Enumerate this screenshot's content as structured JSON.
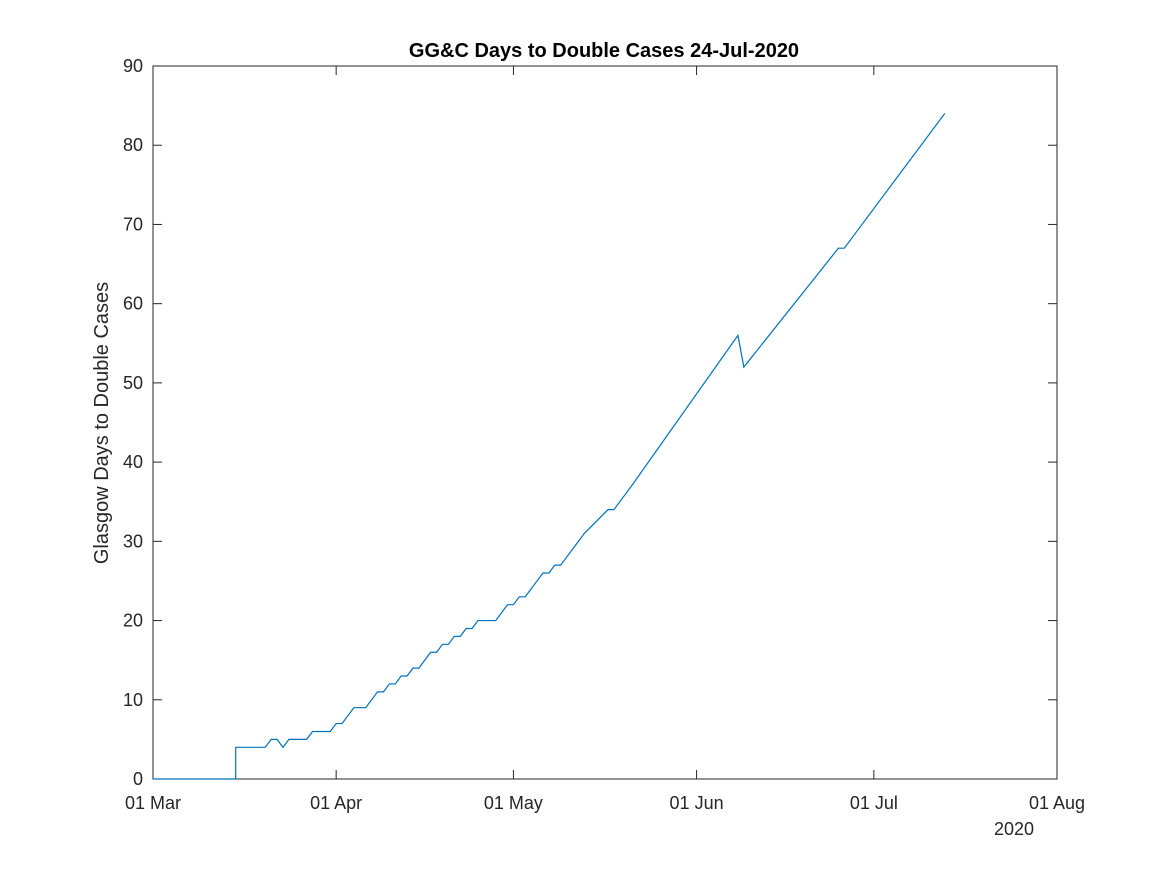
{
  "chart_data": {
    "type": "line",
    "title": "GG&C Days to Double Cases 24-Jul-2020",
    "xlabel": "",
    "ylabel": "Glasgow Days to Double Cases",
    "x_tick_labels": [
      "01 Mar",
      "01 Apr",
      "01 May",
      "01 Jun",
      "01 Jul",
      "01 Aug"
    ],
    "x_tick_dates": [
      "2020-03-01",
      "2020-04-01",
      "2020-05-01",
      "2020-06-01",
      "2020-07-01",
      "2020-08-01"
    ],
    "x_secondary_label": "2020",
    "xlim": [
      "2020-03-01",
      "2020-08-01"
    ],
    "y_ticks": [
      0,
      10,
      20,
      30,
      40,
      50,
      60,
      70,
      80,
      90
    ],
    "ylim": [
      0,
      90
    ],
    "grid": false,
    "line_color": "#0072BD",
    "series": [
      {
        "x": [
          "2020-03-01",
          "2020-03-15",
          "2020-03-15",
          "2020-03-20",
          "2020-03-21",
          "2020-03-22",
          "2020-03-23",
          "2020-03-24",
          "2020-03-27",
          "2020-03-28",
          "2020-03-31",
          "2020-04-01",
          "2020-04-02",
          "2020-04-04",
          "2020-04-06",
          "2020-04-07",
          "2020-04-08",
          "2020-04-09",
          "2020-04-10",
          "2020-04-11",
          "2020-04-12",
          "2020-04-13",
          "2020-04-14",
          "2020-04-15",
          "2020-04-16",
          "2020-04-17",
          "2020-04-18",
          "2020-04-19",
          "2020-04-20",
          "2020-04-21",
          "2020-04-22",
          "2020-04-23",
          "2020-04-24",
          "2020-04-25",
          "2020-04-26",
          "2020-04-27",
          "2020-04-28",
          "2020-04-29",
          "2020-04-30",
          "2020-05-01",
          "2020-05-02",
          "2020-05-03",
          "2020-05-04",
          "2020-05-05",
          "2020-05-06",
          "2020-05-07",
          "2020-05-08",
          "2020-05-09",
          "2020-05-10",
          "2020-05-11",
          "2020-05-12",
          "2020-05-13",
          "2020-05-17",
          "2020-05-18",
          "2020-05-20",
          "2020-05-21",
          "2020-06-08",
          "2020-06-09",
          "2020-06-25",
          "2020-06-26",
          "2020-07-13"
        ],
        "y": [
          0,
          0,
          4,
          4,
          5,
          5,
          4,
          5,
          5,
          6,
          6,
          7,
          7,
          9,
          9,
          10,
          11,
          11,
          12,
          12,
          13,
          13,
          14,
          14,
          15,
          16,
          16,
          17,
          17,
          18,
          18,
          19,
          19,
          20,
          20,
          20,
          20,
          21,
          22,
          22,
          23,
          23,
          24,
          25,
          26,
          26,
          27,
          27,
          28,
          29,
          30,
          31,
          34,
          34,
          36,
          37,
          56,
          52,
          67,
          67,
          84
        ]
      }
    ]
  }
}
